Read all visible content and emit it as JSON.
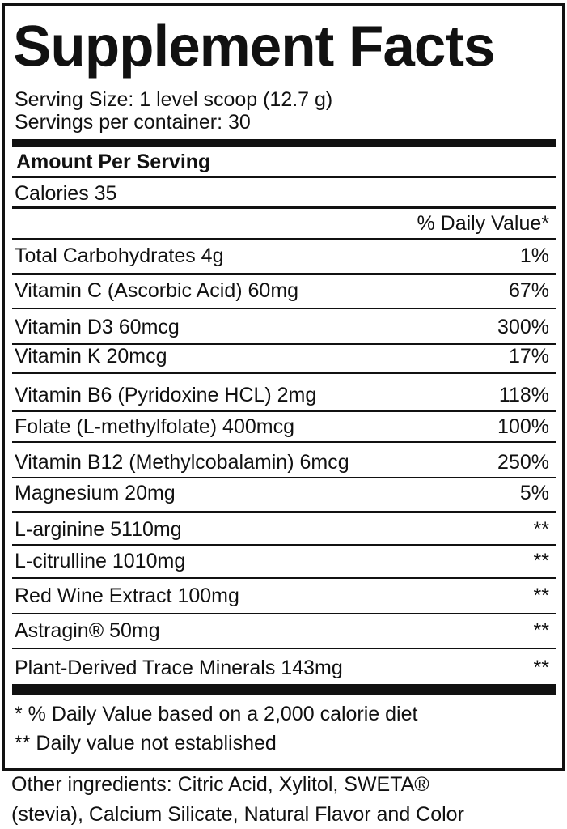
{
  "header": {
    "title": "Supplement Facts",
    "serving_size": "Serving Size: 1 level scoop (12.7 g)",
    "servings_per_container": "Servings per container: 30"
  },
  "amount_per_serving": "Amount Per Serving",
  "calories": "Calories 35",
  "daily_value_header": "% Daily Value*",
  "table": {
    "rows": [
      [
        "Total Carbohydrates 4g",
        "1%"
      ],
      [
        "Vitamin C (Ascorbic Acid) 60mg",
        "67%"
      ],
      [
        "Vitamin D3 60mcg",
        "300%"
      ],
      [
        "Vitamin K 20mcg",
        "17%"
      ],
      [
        "Vitamin B6 (Pyridoxine HCL) 2mg",
        "118%"
      ],
      [
        "Folate (L-methylfolate) 400mcg",
        "100%"
      ],
      [
        "Vitamin B12 (Methylcobalamin) 6mcg",
        "250%"
      ],
      [
        "Magnesium 20mg",
        "5%"
      ],
      [
        "L-arginine 5110mg",
        "**"
      ],
      [
        "L-citrulline 1010mg",
        "**"
      ],
      [
        "Red Wine Extract 100mg",
        "**"
      ],
      [
        "Astragin® 50mg",
        "**"
      ],
      [
        "Plant-Derived Trace Minerals 143mg",
        "**"
      ]
    ]
  },
  "footnotes": [
    "* % Daily Value based on a 2,000 calorie diet",
    "** Daily value not established"
  ],
  "other_ingredients": [
    "Other ingredients: Citric Acid, Xylitol, SWETA®",
    "(stevia), Calcium Silicate, Natural Flavor and Color"
  ]
}
